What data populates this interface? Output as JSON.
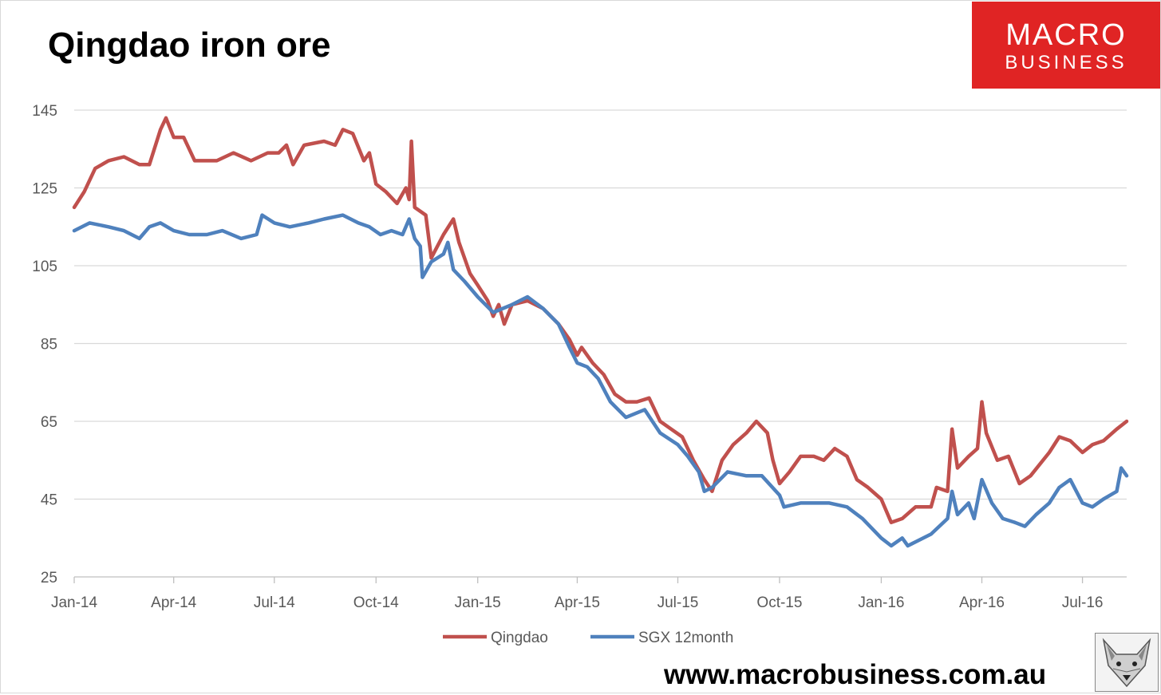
{
  "header": {
    "title": "Qingdao iron ore"
  },
  "logo": {
    "line1": "MACRO",
    "line2": "BUSINESS",
    "color": "#e02424"
  },
  "footer": {
    "url": "www.macrobusiness.com.au",
    "fox_icon": "fox-head-icon"
  },
  "chart_data": {
    "type": "line",
    "title": "Qingdao iron ore",
    "xlabel": "",
    "ylabel": "",
    "ylim": [
      25,
      145
    ],
    "yticks": [
      25,
      45,
      65,
      85,
      105,
      125,
      145
    ],
    "xlim": [
      "2014-01-01",
      "2016-08-10"
    ],
    "xticks": [
      {
        "date": "2014-01-01",
        "label": "Jan-14"
      },
      {
        "date": "2014-04-01",
        "label": "Apr-14"
      },
      {
        "date": "2014-07-01",
        "label": "Jul-14"
      },
      {
        "date": "2014-10-01",
        "label": "Oct-14"
      },
      {
        "date": "2015-01-01",
        "label": "Jan-15"
      },
      {
        "date": "2015-04-01",
        "label": "Apr-15"
      },
      {
        "date": "2015-07-01",
        "label": "Jul-15"
      },
      {
        "date": "2015-10-01",
        "label": "Oct-15"
      },
      {
        "date": "2016-01-01",
        "label": "Jan-16"
      },
      {
        "date": "2016-04-01",
        "label": "Apr-16"
      },
      {
        "date": "2016-07-01",
        "label": "Jul-16"
      }
    ],
    "grid": true,
    "legend": "bottom",
    "series": [
      {
        "name": "Qingdao",
        "color": "#c0504d",
        "points": [
          [
            "2014-01-01",
            120
          ],
          [
            "2014-01-10",
            124
          ],
          [
            "2014-01-20",
            130
          ],
          [
            "2014-02-01",
            132
          ],
          [
            "2014-02-15",
            133
          ],
          [
            "2014-03-01",
            131
          ],
          [
            "2014-03-10",
            131
          ],
          [
            "2014-03-20",
            140
          ],
          [
            "2014-03-25",
            143
          ],
          [
            "2014-04-01",
            138
          ],
          [
            "2014-04-10",
            138
          ],
          [
            "2014-04-20",
            132
          ],
          [
            "2014-05-10",
            132
          ],
          [
            "2014-05-25",
            134
          ],
          [
            "2014-06-10",
            132
          ],
          [
            "2014-06-25",
            134
          ],
          [
            "2014-07-05",
            134
          ],
          [
            "2014-07-12",
            136
          ],
          [
            "2014-07-18",
            131
          ],
          [
            "2014-07-28",
            136
          ],
          [
            "2014-08-15",
            137
          ],
          [
            "2014-08-25",
            136
          ],
          [
            "2014-09-01",
            140
          ],
          [
            "2014-09-10",
            139
          ],
          [
            "2014-09-20",
            132
          ],
          [
            "2014-09-25",
            134
          ],
          [
            "2014-10-01",
            126
          ],
          [
            "2014-10-10",
            124
          ],
          [
            "2014-10-20",
            121
          ],
          [
            "2014-10-28",
            125
          ],
          [
            "2014-10-31",
            122
          ],
          [
            "2014-11-02",
            137
          ],
          [
            "2014-11-05",
            120
          ],
          [
            "2014-11-15",
            118
          ],
          [
            "2014-11-20",
            107
          ],
          [
            "2014-12-01",
            113
          ],
          [
            "2014-12-10",
            117
          ],
          [
            "2014-12-15",
            111
          ],
          [
            "2014-12-25",
            103
          ],
          [
            "2015-01-01",
            100
          ],
          [
            "2015-01-10",
            96
          ],
          [
            "2015-01-15",
            92
          ],
          [
            "2015-01-20",
            95
          ],
          [
            "2015-01-25",
            90
          ],
          [
            "2015-02-01",
            95
          ],
          [
            "2015-02-15",
            96
          ],
          [
            "2015-03-01",
            94
          ],
          [
            "2015-03-15",
            90
          ],
          [
            "2015-03-25",
            86
          ],
          [
            "2015-04-01",
            82
          ],
          [
            "2015-04-05",
            84
          ],
          [
            "2015-04-15",
            80
          ],
          [
            "2015-04-25",
            77
          ],
          [
            "2015-05-05",
            72
          ],
          [
            "2015-05-15",
            70
          ],
          [
            "2015-05-25",
            70
          ],
          [
            "2015-06-05",
            71
          ],
          [
            "2015-06-15",
            65
          ],
          [
            "2015-06-25",
            63
          ],
          [
            "2015-07-05",
            61
          ],
          [
            "2015-07-15",
            55
          ],
          [
            "2015-07-25",
            50
          ],
          [
            "2015-08-01",
            47
          ],
          [
            "2015-08-10",
            55
          ],
          [
            "2015-08-20",
            59
          ],
          [
            "2015-09-01",
            62
          ],
          [
            "2015-09-10",
            65
          ],
          [
            "2015-09-20",
            62
          ],
          [
            "2015-09-25",
            55
          ],
          [
            "2015-10-01",
            49
          ],
          [
            "2015-10-10",
            52
          ],
          [
            "2015-10-20",
            56
          ],
          [
            "2015-11-01",
            56
          ],
          [
            "2015-11-10",
            55
          ],
          [
            "2015-11-20",
            58
          ],
          [
            "2015-12-01",
            56
          ],
          [
            "2015-12-10",
            50
          ],
          [
            "2015-12-20",
            48
          ],
          [
            "2016-01-01",
            45
          ],
          [
            "2016-01-10",
            39
          ],
          [
            "2016-01-20",
            40
          ],
          [
            "2016-02-01",
            43
          ],
          [
            "2016-02-15",
            43
          ],
          [
            "2016-02-20",
            48
          ],
          [
            "2016-03-01",
            47
          ],
          [
            "2016-03-05",
            63
          ],
          [
            "2016-03-10",
            53
          ],
          [
            "2016-03-20",
            56
          ],
          [
            "2016-03-28",
            58
          ],
          [
            "2016-04-01",
            70
          ],
          [
            "2016-04-05",
            62
          ],
          [
            "2016-04-15",
            55
          ],
          [
            "2016-04-25",
            56
          ],
          [
            "2016-05-05",
            49
          ],
          [
            "2016-05-15",
            51
          ],
          [
            "2016-06-01",
            57
          ],
          [
            "2016-06-10",
            61
          ],
          [
            "2016-06-20",
            60
          ],
          [
            "2016-07-01",
            57
          ],
          [
            "2016-07-10",
            59
          ],
          [
            "2016-07-20",
            60
          ],
          [
            "2016-08-01",
            63
          ],
          [
            "2016-08-10",
            65
          ]
        ]
      },
      {
        "name": "SGX 12month",
        "color": "#4f81bd",
        "points": [
          [
            "2014-01-01",
            114
          ],
          [
            "2014-01-15",
            116
          ],
          [
            "2014-02-01",
            115
          ],
          [
            "2014-02-15",
            114
          ],
          [
            "2014-03-01",
            112
          ],
          [
            "2014-03-10",
            115
          ],
          [
            "2014-03-20",
            116
          ],
          [
            "2014-04-01",
            114
          ],
          [
            "2014-04-15",
            113
          ],
          [
            "2014-05-01",
            113
          ],
          [
            "2014-05-15",
            114
          ],
          [
            "2014-06-01",
            112
          ],
          [
            "2014-06-15",
            113
          ],
          [
            "2014-06-20",
            118
          ],
          [
            "2014-07-01",
            116
          ],
          [
            "2014-07-15",
            115
          ],
          [
            "2014-08-01",
            116
          ],
          [
            "2014-08-15",
            117
          ],
          [
            "2014-09-01",
            118
          ],
          [
            "2014-09-15",
            116
          ],
          [
            "2014-09-25",
            115
          ],
          [
            "2014-10-05",
            113
          ],
          [
            "2014-10-15",
            114
          ],
          [
            "2014-10-25",
            113
          ],
          [
            "2014-10-31",
            117
          ],
          [
            "2014-11-05",
            112
          ],
          [
            "2014-11-10",
            110
          ],
          [
            "2014-11-12",
            102
          ],
          [
            "2014-11-20",
            106
          ],
          [
            "2014-12-01",
            108
          ],
          [
            "2014-12-05",
            111
          ],
          [
            "2014-12-10",
            104
          ],
          [
            "2014-12-20",
            101
          ],
          [
            "2015-01-01",
            97
          ],
          [
            "2015-01-15",
            93
          ],
          [
            "2015-02-01",
            95
          ],
          [
            "2015-02-15",
            97
          ],
          [
            "2015-03-01",
            94
          ],
          [
            "2015-03-15",
            90
          ],
          [
            "2015-03-25",
            84
          ],
          [
            "2015-04-01",
            80
          ],
          [
            "2015-04-10",
            79
          ],
          [
            "2015-04-20",
            76
          ],
          [
            "2015-05-01",
            70
          ],
          [
            "2015-05-15",
            66
          ],
          [
            "2015-06-01",
            68
          ],
          [
            "2015-06-15",
            62
          ],
          [
            "2015-07-01",
            59
          ],
          [
            "2015-07-10",
            56
          ],
          [
            "2015-07-20",
            52
          ],
          [
            "2015-07-25",
            47
          ],
          [
            "2015-08-01",
            48
          ],
          [
            "2015-08-15",
            52
          ],
          [
            "2015-09-01",
            51
          ],
          [
            "2015-09-15",
            51
          ],
          [
            "2015-10-01",
            46
          ],
          [
            "2015-10-05",
            43
          ],
          [
            "2015-10-20",
            44
          ],
          [
            "2015-11-01",
            44
          ],
          [
            "2015-11-15",
            44
          ],
          [
            "2015-12-01",
            43
          ],
          [
            "2015-12-15",
            40
          ],
          [
            "2016-01-01",
            35
          ],
          [
            "2016-01-10",
            33
          ],
          [
            "2016-01-20",
            35
          ],
          [
            "2016-01-25",
            33
          ],
          [
            "2016-02-01",
            34
          ],
          [
            "2016-02-15",
            36
          ],
          [
            "2016-03-01",
            40
          ],
          [
            "2016-03-05",
            47
          ],
          [
            "2016-03-10",
            41
          ],
          [
            "2016-03-20",
            44
          ],
          [
            "2016-03-25",
            40
          ],
          [
            "2016-04-01",
            50
          ],
          [
            "2016-04-10",
            44
          ],
          [
            "2016-04-20",
            40
          ],
          [
            "2016-05-01",
            39
          ],
          [
            "2016-05-10",
            38
          ],
          [
            "2016-05-20",
            41
          ],
          [
            "2016-06-01",
            44
          ],
          [
            "2016-06-10",
            48
          ],
          [
            "2016-06-20",
            50
          ],
          [
            "2016-07-01",
            44
          ],
          [
            "2016-07-10",
            43
          ],
          [
            "2016-07-20",
            45
          ],
          [
            "2016-08-01",
            47
          ],
          [
            "2016-08-05",
            53
          ],
          [
            "2016-08-10",
            51
          ]
        ]
      }
    ]
  }
}
